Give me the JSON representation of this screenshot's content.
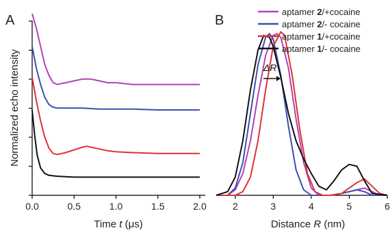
{
  "panel_a": {
    "label": "A",
    "chart_data": {
      "type": "line",
      "xlabel_parts": [
        "Time ",
        "t",
        " (μs)"
      ],
      "ylabel": "Normalized echo intensity",
      "xlim": [
        0,
        2.0
      ],
      "ylim": [
        0,
        1.0
      ],
      "xticks": [
        "0.0",
        "0.5",
        "1.0",
        "1.5",
        "2.0"
      ],
      "series": [
        {
          "name": "aptamer 2/+cocaine",
          "color": "#b042b8",
          "x": [
            0.0,
            0.05,
            0.1,
            0.15,
            0.2,
            0.25,
            0.3,
            0.4,
            0.5,
            0.6,
            0.65,
            0.7,
            0.8,
            0.9,
            1.0,
            1.2,
            1.5,
            2.0
          ],
          "y": [
            1.0,
            0.92,
            0.82,
            0.72,
            0.66,
            0.62,
            0.61,
            0.62,
            0.63,
            0.64,
            0.64,
            0.64,
            0.63,
            0.62,
            0.62,
            0.61,
            0.61,
            0.61
          ]
        },
        {
          "name": "aptamer 2/- cocaine",
          "color": "#3b4fb0",
          "x": [
            0.0,
            0.05,
            0.1,
            0.15,
            0.2,
            0.25,
            0.3,
            0.4,
            0.5,
            0.6,
            0.8,
            1.0,
            1.2,
            1.5,
            2.0
          ],
          "y": [
            0.82,
            0.7,
            0.61,
            0.54,
            0.5,
            0.485,
            0.48,
            0.48,
            0.48,
            0.48,
            0.475,
            0.475,
            0.475,
            0.47,
            0.47
          ]
        },
        {
          "name": "aptamer 1/+cocaine",
          "color": "#e03030",
          "x": [
            0.0,
            0.05,
            0.1,
            0.15,
            0.2,
            0.25,
            0.3,
            0.4,
            0.5,
            0.6,
            0.65,
            0.7,
            0.8,
            0.9,
            1.0,
            1.2,
            1.5,
            2.0
          ],
          "y": [
            0.65,
            0.52,
            0.41,
            0.32,
            0.26,
            0.23,
            0.225,
            0.235,
            0.25,
            0.265,
            0.27,
            0.265,
            0.255,
            0.245,
            0.24,
            0.235,
            0.23,
            0.23
          ]
        },
        {
          "name": "aptamer 1/- cocaine",
          "color": "#111111",
          "x": [
            0.0,
            0.03,
            0.06,
            0.1,
            0.15,
            0.2,
            0.3,
            0.5,
            1.0,
            1.5,
            2.0
          ],
          "y": [
            0.47,
            0.33,
            0.22,
            0.15,
            0.12,
            0.11,
            0.105,
            0.1,
            0.1,
            0.1,
            0.1
          ]
        }
      ]
    }
  },
  "panel_b": {
    "label": "B",
    "delta_label": "ΔR",
    "chart_data": {
      "type": "line",
      "xlabel_parts": [
        "Distance ",
        "R",
        " (nm)"
      ],
      "xlim": [
        1.5,
        6.0
      ],
      "ylim": [
        0,
        1.0
      ],
      "xticks": [
        "2",
        "3",
        "4",
        "5",
        "6"
      ],
      "series": [
        {
          "name": "aptamer 2/+cocaine",
          "color": "#b042b8",
          "x": [
            1.5,
            1.8,
            2.0,
            2.2,
            2.4,
            2.6,
            2.8,
            3.0,
            3.1,
            3.2,
            3.4,
            3.6,
            3.8,
            4.0,
            4.2,
            4.5,
            4.8,
            5.0,
            5.2,
            5.4,
            5.6,
            5.8,
            6.0
          ],
          "y": [
            0.0,
            0.0,
            0.03,
            0.12,
            0.3,
            0.55,
            0.77,
            0.88,
            0.89,
            0.87,
            0.7,
            0.42,
            0.18,
            0.04,
            0.0,
            0.0,
            0.01,
            0.02,
            0.03,
            0.04,
            0.02,
            0.0,
            0.0
          ]
        },
        {
          "name": "aptamer 2/- cocaine",
          "color": "#3b4fb0",
          "x": [
            1.5,
            1.8,
            2.0,
            2.2,
            2.4,
            2.6,
            2.8,
            2.9,
            3.0,
            3.2,
            3.4,
            3.6,
            3.8,
            4.0,
            4.2,
            4.5,
            4.8,
            5.0,
            5.2,
            5.4,
            5.6,
            6.0
          ],
          "y": [
            0.0,
            0.0,
            0.04,
            0.18,
            0.45,
            0.72,
            0.87,
            0.89,
            0.86,
            0.66,
            0.38,
            0.14,
            0.03,
            0.0,
            0.0,
            0.0,
            0.01,
            0.02,
            0.03,
            0.02,
            0.0,
            0.0
          ]
        },
        {
          "name": "aptamer 1/+cocaine",
          "color": "#e03030",
          "x": [
            1.5,
            1.8,
            2.0,
            2.2,
            2.4,
            2.6,
            2.8,
            3.0,
            3.2,
            3.3,
            3.5,
            3.7,
            3.9,
            4.1,
            4.3,
            4.5,
            4.8,
            5.0,
            5.2,
            5.4,
            5.6,
            5.8,
            6.0
          ],
          "y": [
            0.0,
            0.0,
            0.0,
            0.02,
            0.1,
            0.3,
            0.58,
            0.82,
            0.9,
            0.88,
            0.66,
            0.36,
            0.12,
            0.02,
            0.0,
            0.0,
            0.01,
            0.04,
            0.07,
            0.09,
            0.05,
            0.01,
            0.0
          ]
        },
        {
          "name": "aptamer 1/- cocaine",
          "color": "#111111",
          "x": [
            1.5,
            1.8,
            2.0,
            2.2,
            2.4,
            2.6,
            2.75,
            2.9,
            3.0,
            3.2,
            3.4,
            3.6,
            3.8,
            4.0,
            4.2,
            4.4,
            4.6,
            4.8,
            5.0,
            5.2,
            5.4,
            5.6,
            6.0
          ],
          "y": [
            0.0,
            0.02,
            0.1,
            0.3,
            0.58,
            0.8,
            0.88,
            0.87,
            0.82,
            0.65,
            0.45,
            0.3,
            0.2,
            0.12,
            0.05,
            0.03,
            0.08,
            0.14,
            0.17,
            0.16,
            0.08,
            0.01,
            0.0
          ]
        }
      ]
    }
  },
  "legend": {
    "entries": [
      {
        "prefix": "aptamer ",
        "bold": "2",
        "suffix": "/+cocaine",
        "color": "#b042b8"
      },
      {
        "prefix": "aptamer ",
        "bold": "2",
        "suffix": "/- cocaine",
        "color": "#3b4fb0"
      },
      {
        "prefix": "aptamer ",
        "bold": "1",
        "suffix": "/+cocaine",
        "color": "#e03030"
      },
      {
        "prefix": "aptamer ",
        "bold": "1",
        "suffix": "/- cocaine",
        "color": "#111111"
      }
    ]
  }
}
